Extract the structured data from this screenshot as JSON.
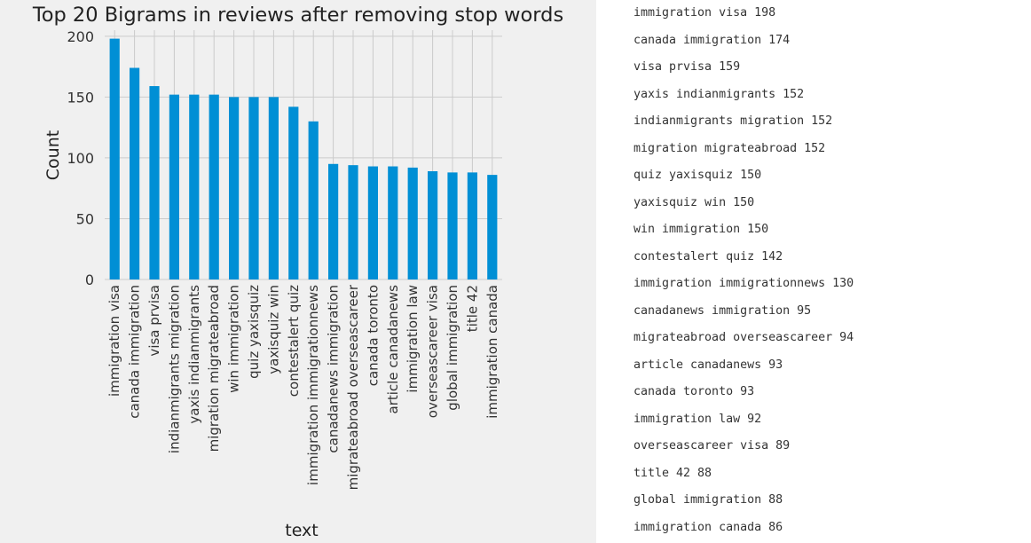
{
  "chart_data": {
    "type": "bar",
    "title": "Top 20 Bigrams in reviews after removing stop words",
    "xlabel": "text",
    "ylabel": "Count",
    "ylim": [
      0,
      205
    ],
    "yticks": [
      0,
      50,
      100,
      150,
      200
    ],
    "grid": true,
    "bar_color": "#008fd5",
    "categories": [
      "immigration visa",
      "canada immigration",
      "visa prvisa",
      "indianmigrants migration",
      "yaxis indianmigrants",
      "migration migrateabroad",
      "win immigration",
      "quiz yaxisquiz",
      "yaxisquiz win",
      "contestalert quiz",
      "immigration immigrationnews",
      "canadanews immigration",
      "migrateabroad overseascareer",
      "canada toronto",
      "article canadanews",
      "immigration law",
      "overseascareer visa",
      "global immigration",
      "title 42",
      "immigration canada"
    ],
    "values": [
      198,
      174,
      159,
      152,
      152,
      152,
      150,
      150,
      150,
      142,
      130,
      95,
      94,
      93,
      93,
      92,
      89,
      88,
      88,
      86
    ]
  },
  "output": {
    "lines": [
      "immigration visa 198",
      "canada immigration 174",
      "visa prvisa 159",
      "yaxis indianmigrants 152",
      "indianmigrants migration 152",
      "migration migrateabroad 152",
      "quiz yaxisquiz 150",
      "yaxisquiz win 150",
      "win immigration 150",
      "contestalert quiz 142",
      "immigration immigrationnews 130",
      "canadanews immigration 95",
      "migrateabroad overseascareer 94",
      "article canadanews 93",
      "canada toronto 93",
      "immigration law 92",
      "overseascareer visa 89",
      "title 42 88",
      "global immigration 88",
      "immigration canada 86"
    ]
  }
}
